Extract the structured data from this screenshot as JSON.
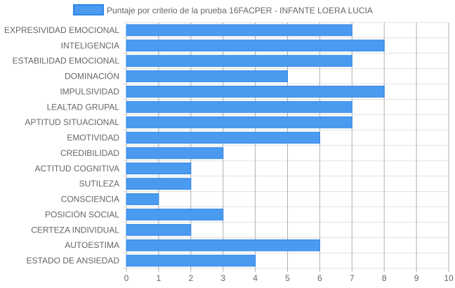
{
  "chart_data": {
    "type": "bar",
    "orientation": "horizontal",
    "categories": [
      "EXPRESIVIDAD EMOCIONAL",
      "INTELIGENCIA",
      "ESTABILIDAD EMOCIONAL",
      "DOMINACIÓN",
      "IMPULSIVIDAD",
      "LEALTAD GRUPAL",
      "APTITUD SITUACIONAL",
      "EMOTIVIDAD",
      "CREDIBILIDAD",
      "ACTITUD COGNITIVA",
      "SUTILEZA",
      "CONSCIENCIA",
      "POSICIÓN SOCIAL",
      "CERTEZA INDIVIDUAL",
      "AUTOESTIMA",
      "ESTADO DE ANSIEDAD"
    ],
    "series": [
      {
        "name": "Puntaje por criterio de la prueba 16FACPER - INFANTE LOERA LUCIA",
        "values": [
          7,
          8,
          7,
          5,
          8,
          7,
          7,
          6,
          3,
          2,
          2,
          1,
          3,
          2,
          6,
          4
        ]
      }
    ],
    "xlim": [
      0,
      10
    ],
    "xticks": [
      "0",
      "1",
      "2",
      "3",
      "4",
      "5",
      "6",
      "7",
      "8",
      "9",
      "10"
    ],
    "grid": true,
    "legend_position": "top",
    "colors": {
      "bar_fill": "#4a9af0",
      "bar_border": "#2f86e8",
      "grid": "#e0e0e0",
      "axis_grid": "#b0b0b0"
    }
  }
}
